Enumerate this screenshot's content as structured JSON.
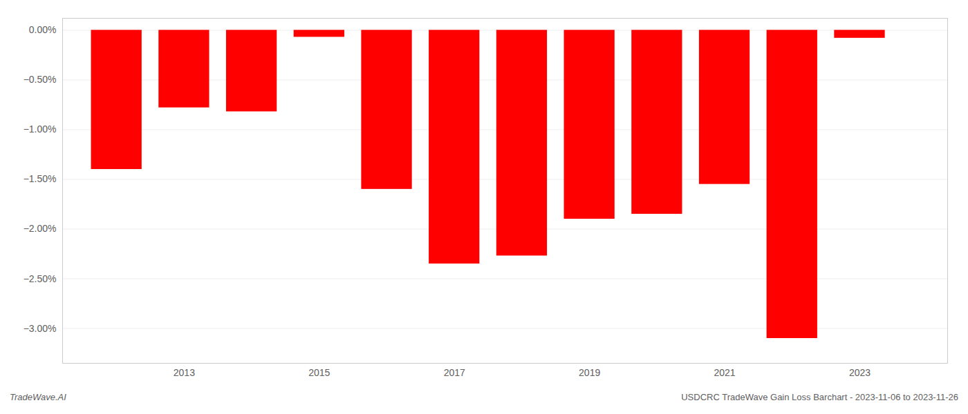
{
  "chart_data": {
    "type": "bar",
    "x": [
      2012,
      2013,
      2014,
      2015,
      2016,
      2017,
      2018,
      2019,
      2020,
      2021,
      2022,
      2023
    ],
    "values": [
      -1.4,
      -0.78,
      -0.82,
      -0.07,
      -1.6,
      -2.35,
      -2.27,
      -1.9,
      -1.85,
      -1.55,
      -3.1,
      -0.08
    ],
    "color": "#ff0000",
    "xlim": [
      2011.2,
      2024.3
    ],
    "xticks": [
      2013,
      2015,
      2017,
      2019,
      2021,
      2023
    ],
    "ylim": [
      -3.35,
      0.12
    ],
    "yticks": [
      {
        "value": 0.0,
        "label": "0.00%"
      },
      {
        "value": -0.5,
        "label": "−0.50%"
      },
      {
        "value": -1.0,
        "label": "−1.00%"
      },
      {
        "value": -1.5,
        "label": "−1.50%"
      },
      {
        "value": -2.0,
        "label": "−2.00%"
      },
      {
        "value": -2.5,
        "label": "−2.50%"
      },
      {
        "value": -3.0,
        "label": "−3.00%"
      }
    ],
    "grid": true,
    "annotations": [
      "TradeWave.AI",
      "USDCRC TradeWave Gain Loss Barchart - 2023-11-06 to 2023-11-26"
    ]
  }
}
